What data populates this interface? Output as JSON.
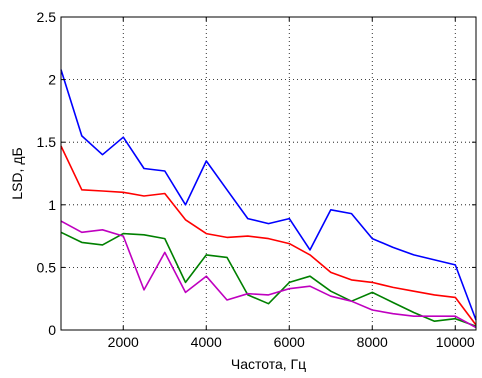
{
  "chart_data": {
    "type": "line",
    "title": "",
    "xlabel": "Частота, Гц",
    "ylabel": "LSD, дБ",
    "xlim": [
      500,
      10500
    ],
    "ylim": [
      0,
      2.5
    ],
    "xticks": [
      2000,
      4000,
      6000,
      8000,
      10000
    ],
    "xtick_labels": [
      "2000",
      "4000",
      "6000",
      "8000",
      "10000"
    ],
    "yticks": [
      0,
      0.5,
      1,
      1.5,
      2,
      2.5
    ],
    "ytick_labels": [
      "0",
      "0.5",
      "1",
      "1.5",
      "2",
      "2.5"
    ],
    "grid": true,
    "grid_style": "dotted",
    "x": [
      500,
      1000,
      1500,
      2000,
      2500,
      3000,
      3500,
      4000,
      4500,
      5000,
      5500,
      6000,
      6500,
      7000,
      7500,
      8000,
      8500,
      9000,
      9500,
      10000,
      10500
    ],
    "series": [
      {
        "color": "#0000ff",
        "values": [
          2.08,
          1.55,
          1.4,
          1.54,
          1.29,
          1.27,
          1.0,
          1.35,
          1.12,
          0.89,
          0.85,
          0.89,
          0.64,
          0.96,
          0.93,
          0.73,
          0.66,
          0.6,
          0.56,
          0.52,
          0.08
        ]
      },
      {
        "color": "#ff0000",
        "values": [
          1.47,
          1.12,
          1.11,
          1.1,
          1.07,
          1.09,
          0.88,
          0.77,
          0.74,
          0.75,
          0.73,
          0.69,
          0.6,
          0.46,
          0.4,
          0.38,
          0.34,
          0.31,
          0.28,
          0.26,
          0.04
        ]
      },
      {
        "color": "#008000",
        "values": [
          0.78,
          0.7,
          0.68,
          0.77,
          0.76,
          0.73,
          0.38,
          0.6,
          0.58,
          0.28,
          0.21,
          0.38,
          0.43,
          0.31,
          0.23,
          0.3,
          0.22,
          0.14,
          0.07,
          0.09,
          0.03
        ]
      },
      {
        "color": "#bf00bf",
        "values": [
          0.87,
          0.78,
          0.8,
          0.75,
          0.32,
          0.62,
          0.3,
          0.43,
          0.24,
          0.29,
          0.28,
          0.33,
          0.35,
          0.27,
          0.23,
          0.16,
          0.13,
          0.11,
          0.11,
          0.11,
          0.02
        ]
      }
    ]
  }
}
